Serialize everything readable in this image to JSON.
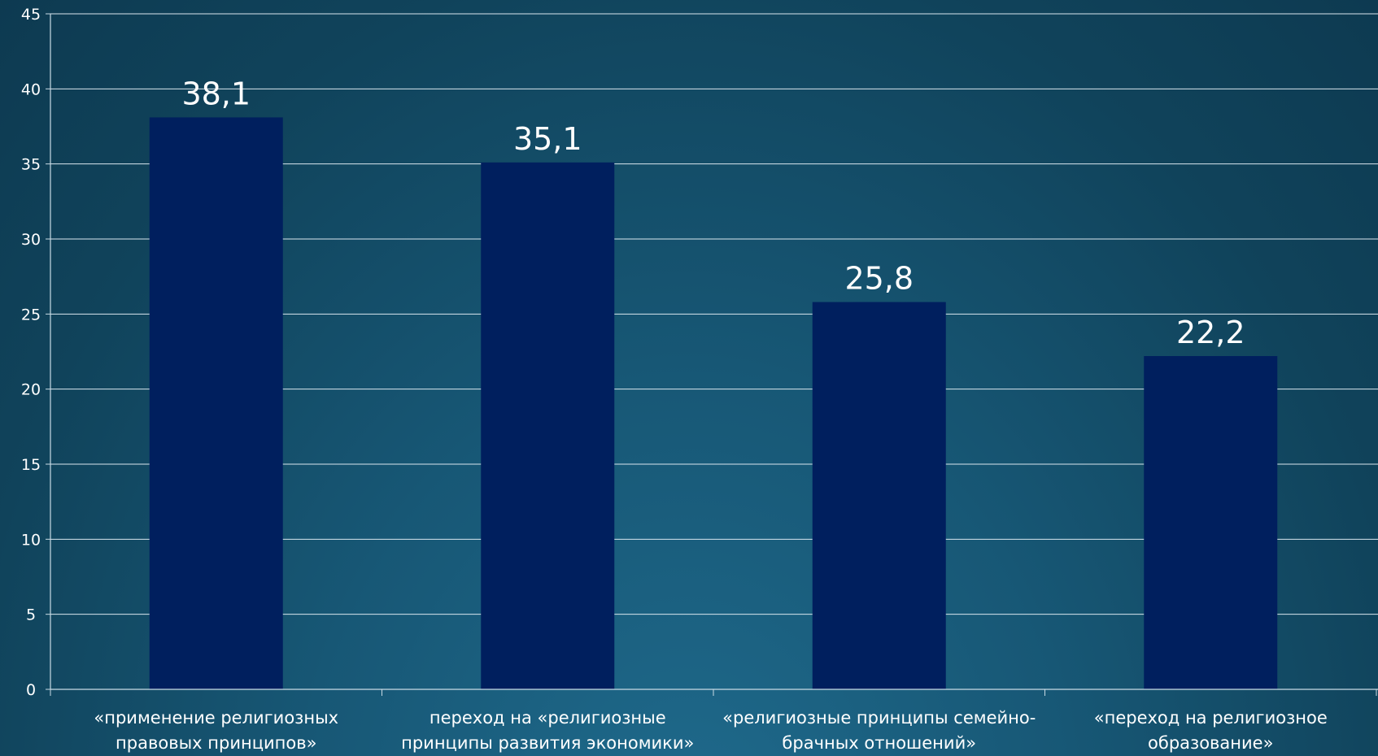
{
  "chart_data": {
    "type": "bar",
    "categories": [
      [
        "«применение религиозных",
        "правовых принципов»"
      ],
      [
        "переход на «религиозные",
        "принципы развития экономики»"
      ],
      [
        "«религиозные принципы семейно-",
        "брачных отношений»"
      ],
      [
        "«переход на религиозное",
        "образование»"
      ]
    ],
    "values": [
      38.1,
      35.1,
      25.8,
      22.2
    ],
    "data_labels": [
      "38,1",
      "35,1",
      "25,8",
      "22,2"
    ],
    "ylim": [
      0,
      45
    ],
    "yticks": [
      0,
      5,
      10,
      15,
      20,
      25,
      30,
      35,
      40,
      45
    ],
    "grid": true,
    "legend": "none",
    "colors": {
      "bar": "#001f5e",
      "grid": "#d9e6ee",
      "axis": "#c9dbe5",
      "text": "#ffffff"
    }
  }
}
